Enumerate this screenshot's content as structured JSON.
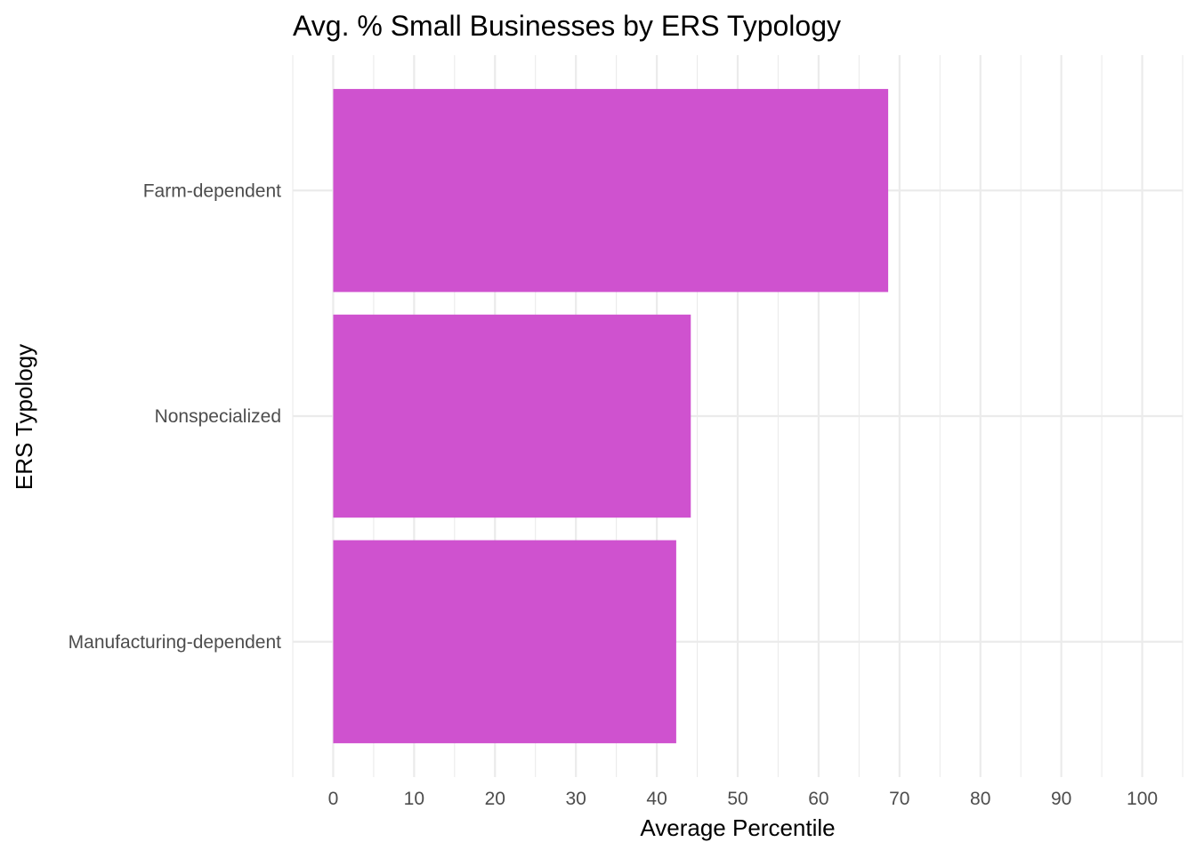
{
  "chart_data": {
    "type": "bar",
    "orientation": "horizontal",
    "title": "Avg. % Small Businesses by ERS Typology",
    "xlabel": "Average Percentile",
    "ylabel": "ERS Typology",
    "categories": [
      "Farm-dependent",
      "Nonspecialized",
      "Manufacturing-dependent"
    ],
    "values": [
      68.6,
      44.2,
      42.4
    ],
    "xlim": [
      -5,
      105
    ],
    "xticks": [
      0,
      10,
      20,
      30,
      40,
      50,
      60,
      70,
      80,
      90,
      100
    ],
    "xtick_labels": [
      "0",
      "10",
      "20",
      "30",
      "40",
      "50",
      "60",
      "70",
      "80",
      "90",
      "100"
    ],
    "grid": true,
    "legend": "none",
    "bar_color": "#CF52CF"
  }
}
